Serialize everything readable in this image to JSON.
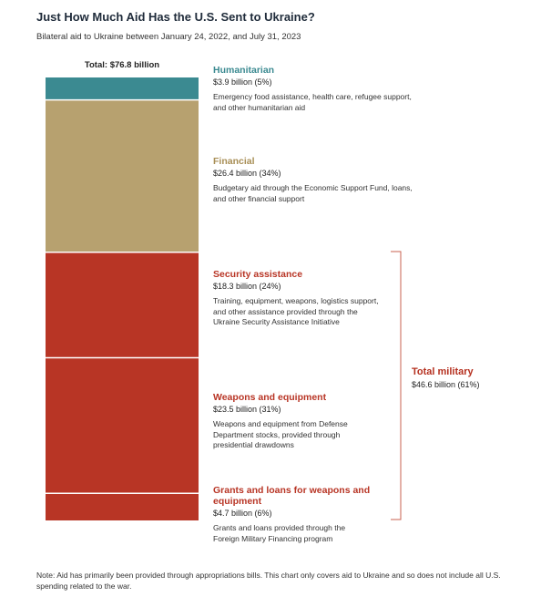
{
  "colors": {
    "humanitarian": "#3b8a91",
    "financial": "#b7a16f",
    "military": "#b83525",
    "bracket": "#c9604f"
  },
  "chart_data": {
    "type": "bar",
    "stacked": true,
    "title": "Just How Much Aid Has the U.S. Sent to Ukraine?",
    "subtitle": "Bilateral aid to Ukraine between January 24, 2022, and July 31, 2023",
    "total_label": "Total: $76.8 billion",
    "total": 76.8,
    "unit": "billion",
    "segments": [
      {
        "key": "humanitarian",
        "name": "Humanitarian",
        "value": 3.9,
        "value_label": "$3.9 billion (5%)",
        "description": "Emergency food assistance, health care, refugee support, and other humanitarian aid",
        "color": "#3b8a91"
      },
      {
        "key": "financial",
        "name": "Financial",
        "value": 26.4,
        "value_label": "$26.4 billion (34%)",
        "description": "Budgetary aid through the Economic Support Fund, loans, and other financial support",
        "color": "#b7a16f"
      },
      {
        "key": "security",
        "name": "Security assistance",
        "value": 18.3,
        "value_label": "$18.3 billion (24%)",
        "description": "Training, equipment, weapons, logistics support, and other assistance provided through the Ukraine Security Assistance Initiative",
        "color": "#b83525"
      },
      {
        "key": "weapons",
        "name": "Weapons and equipment",
        "value": 23.5,
        "value_label": "$23.5 billion (31%)",
        "description": "Weapons and equipment from Defense Department stocks, provided through presidential drawdowns",
        "color": "#b83525"
      },
      {
        "key": "grants",
        "name": "Grants and loans for weapons and equipment",
        "value": 4.7,
        "value_label": "$4.7 billion (6%)",
        "description": "Grants and loans provided through the Foreign Military Financing program",
        "color": "#b83525"
      }
    ],
    "group": {
      "name": "Total military",
      "value": 46.6,
      "value_label": "$46.6 billion (61%)"
    }
  },
  "note": "Note: Aid has primarily been provided through appropriations bills. This chart only covers aid to Ukraine and so does not include all U.S. spending related to the war."
}
